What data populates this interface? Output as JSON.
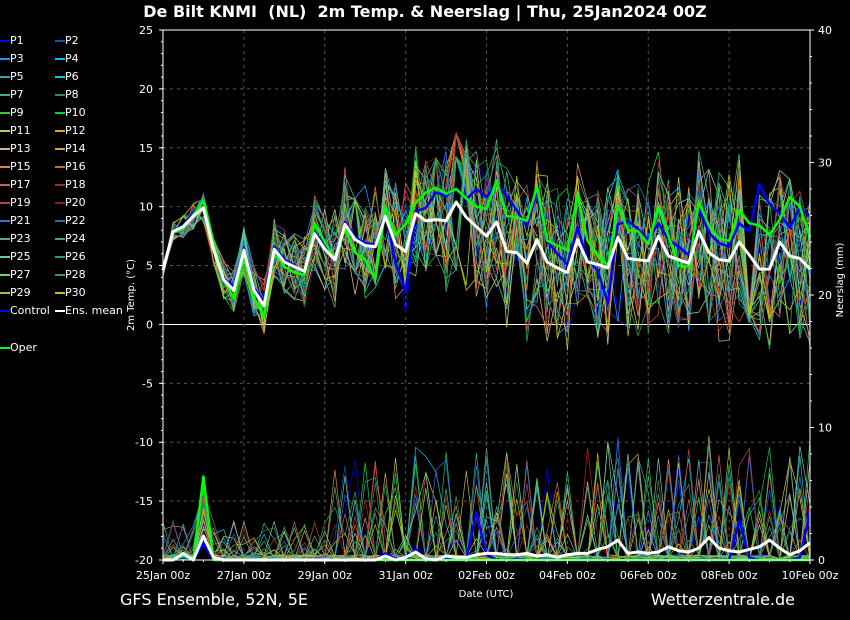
{
  "title": "De Bilt KNMI  (NL)  2m Temp. & Neerslag | Thu, 25Jan2024 00Z",
  "footer": {
    "model": "GFS Ensemble, 52N, 5E",
    "source": "Wetterzentrale.de"
  },
  "colors": {
    "background": "#000000",
    "mean": "#ffffff",
    "control": "#0000ff",
    "oper": "#00ff00",
    "grid": "#555555"
  },
  "chart_data": {
    "type": "line",
    "xlabel": "Date (UTC)",
    "ylabel": "2m Temp. (°C)",
    "y2label": "Neerslag (mm)",
    "xticks": [
      "25Jan 00z",
      "27Jan 00z",
      "29Jan 00z",
      "31Jan 00z",
      "02Feb 00z",
      "04Feb 00z",
      "06Feb 00z",
      "08Feb 00z",
      "10Feb 00z"
    ],
    "xlim_hours": [
      0,
      384
    ],
    "ylim": [
      -20,
      25
    ],
    "yticks": [
      25,
      20,
      15,
      10,
      5,
      0,
      -5,
      -10,
      -15,
      -20
    ],
    "y2lim": [
      0,
      40
    ],
    "y2ticks": [
      40,
      30,
      20,
      10,
      0
    ],
    "grid": true,
    "legend": [
      "P1",
      "P2",
      "P3",
      "P4",
      "P5",
      "P6",
      "P7",
      "P8",
      "P9",
      "P10",
      "P11",
      "P12",
      "P13",
      "P14",
      "P15",
      "P16",
      "P17",
      "P18",
      "P19",
      "P20",
      "P21",
      "P22",
      "P23",
      "P24",
      "P25",
      "P26",
      "P27",
      "P28",
      "P29",
      "P30",
      "Control",
      "Ens. mean",
      "Oper"
    ],
    "legend_colors": [
      "#0000ff",
      "#0055cc",
      "#1e90ff",
      "#00bfff",
      "#20b2aa",
      "#00ced1",
      "#3cb371",
      "#2e8b57",
      "#32cd32",
      "#00cc44",
      "#c8c850",
      "#c8b400",
      "#d2b48c",
      "#d2a050",
      "#e08050",
      "#d2691e",
      "#cd5c5c",
      "#b22222",
      "#c04040",
      "#8b1a1a",
      "#4169e1",
      "#1e70c0",
      "#5f9ea0",
      "#40a0a0",
      "#66cdaa",
      "#20a070",
      "#7ccd7c",
      "#30a050",
      "#9acd32",
      "#c8c000",
      "#0000ff",
      "#ffffff",
      "#00ff00"
    ],
    "series": [
      {
        "name": "Ens. mean",
        "x": [
          0,
          6,
          12,
          18,
          24,
          30,
          36,
          42,
          48,
          54,
          60,
          66,
          72,
          78,
          84,
          90,
          96,
          102,
          108,
          114,
          120,
          126,
          132,
          138,
          144,
          150,
          156,
          162,
          168,
          174,
          180,
          186,
          192,
          198,
          204,
          210,
          216,
          222,
          228,
          234,
          240,
          246,
          252,
          258,
          264,
          270,
          276,
          282,
          288,
          294,
          300,
          306,
          312,
          318,
          324,
          330,
          336,
          342,
          348,
          354,
          360,
          366,
          372,
          378,
          384
        ],
        "values": [
          4.6,
          7.9,
          8.3,
          9.2,
          9.9,
          6.4,
          3.8,
          2.9,
          6.3,
          2.9,
          1.6,
          6.4,
          5.3,
          4.9,
          4.5,
          7.7,
          6.4,
          5.5,
          8.5,
          7.2,
          6.7,
          6.6,
          9.2,
          6.8,
          6.2,
          9.4,
          8.8,
          8.9,
          8.8,
          10.4,
          9.1,
          8.3,
          7.5,
          8.7,
          6.2,
          6.1,
          5.2,
          7.2,
          5.3,
          4.8,
          4.4,
          7.2,
          5.3,
          5.1,
          4.8,
          7.4,
          5.6,
          5.5,
          5.4,
          7.5,
          5.8,
          5.5,
          5.2,
          7.9,
          6.1,
          5.5,
          5.4,
          7.0,
          5.9,
          4.7,
          4.7,
          7.0,
          5.8,
          5.6,
          4.7
        ]
      },
      {
        "name": "Control",
        "x": [
          0,
          6,
          12,
          18,
          24,
          30,
          36,
          42,
          48,
          54,
          60,
          66,
          72,
          78,
          84,
          90,
          96,
          102,
          108,
          114,
          120,
          126,
          132,
          138,
          144,
          150,
          156,
          162,
          168,
          174,
          180,
          186,
          192,
          198,
          204,
          210,
          216,
          222,
          228,
          234,
          240,
          246,
          252,
          258,
          264,
          270,
          276,
          282,
          288,
          294,
          300,
          306,
          312,
          318,
          324,
          330,
          336,
          342,
          348,
          354,
          360,
          366,
          372,
          378,
          384
        ],
        "values": [
          4.6,
          8.0,
          8.4,
          9.5,
          10.4,
          6.5,
          3.9,
          3.2,
          6.5,
          3.1,
          1.9,
          6.6,
          5.5,
          5.0,
          4.4,
          7.9,
          6.6,
          5.6,
          8.7,
          7.4,
          6.9,
          6.8,
          9.5,
          5.2,
          2.8,
          9.6,
          9.9,
          11.2,
          10.9,
          11.6,
          10.6,
          11.5,
          10.8,
          12.0,
          10.9,
          9.7,
          8.3,
          11.2,
          7.1,
          6.0,
          5.1,
          8.2,
          5.5,
          4.6,
          1.8,
          8.5,
          8.8,
          8.1,
          7.2,
          8.6,
          7.2,
          6.6,
          5.9,
          9.9,
          7.8,
          6.9,
          6.6,
          8.6,
          7.9,
          11.9,
          10.2,
          9.4,
          8.2,
          9.9,
          9.2
        ]
      },
      {
        "name": "Oper",
        "x": [
          0,
          6,
          12,
          18,
          24,
          30,
          36,
          42,
          48,
          54,
          60,
          66,
          72,
          78,
          84,
          90,
          96,
          102,
          108,
          114,
          120,
          126,
          132,
          138,
          144,
          150,
          156,
          162,
          168,
          174,
          180,
          186,
          192,
          198,
          204,
          210,
          216,
          222,
          228,
          234,
          240,
          246,
          252,
          258,
          264,
          270,
          276,
          282,
          288,
          294,
          300,
          306,
          312,
          318,
          324,
          330,
          336,
          342,
          348,
          354,
          360,
          366,
          372,
          378,
          384
        ],
        "values": [
          4.6,
          7.8,
          8.1,
          9.3,
          10.5,
          7.0,
          3.8,
          2.2,
          5.9,
          2.3,
          0.6,
          6.2,
          4.9,
          4.4,
          4.2,
          8.6,
          7.0,
          5.6,
          8.1,
          6.1,
          5.5,
          3.8,
          9.9,
          7.6,
          8.5,
          10.3,
          11.2,
          11.6,
          11.1,
          11.5,
          10.7,
          10.0,
          9.8,
          12.2,
          9.2,
          9.1,
          8.8,
          11.7,
          7.1,
          6.7,
          6.3,
          11.0,
          7.1,
          5.9,
          5.0,
          10.1,
          8.0,
          7.9,
          6.8,
          10.0,
          7.5,
          5.0,
          4.9,
          10.4,
          8.4,
          7.3,
          7.1,
          9.7,
          8.6,
          8.4,
          7.6,
          8.9,
          10.8,
          10.0,
          7.4
        ]
      },
      {
        "name": "Neerslag mean",
        "axis": "y2",
        "x": [
          0,
          6,
          12,
          18,
          24,
          30,
          36,
          42,
          48,
          54,
          60,
          66,
          72,
          78,
          84,
          90,
          96,
          102,
          108,
          114,
          120,
          126,
          132,
          138,
          144,
          150,
          156,
          162,
          168,
          174,
          180,
          186,
          192,
          198,
          204,
          210,
          216,
          222,
          228,
          234,
          240,
          246,
          252,
          258,
          264,
          270,
          276,
          282,
          288,
          294,
          300,
          306,
          312,
          318,
          324,
          330,
          336,
          342,
          348,
          354,
          360,
          366,
          372,
          378,
          384
        ],
        "values": [
          0,
          0,
          0.5,
          0,
          1.8,
          0.2,
          0,
          0,
          0,
          0,
          0,
          0,
          0,
          0,
          0,
          0,
          0,
          0,
          0,
          0,
          0,
          0,
          0.3,
          0,
          0.2,
          0.6,
          0.1,
          0,
          0.3,
          0.2,
          0.2,
          0.4,
          0.5,
          0.5,
          0.4,
          0.4,
          0.5,
          0.3,
          0.4,
          0.2,
          0.4,
          0.5,
          0.5,
          0.8,
          1.0,
          1.5,
          0.5,
          0.6,
          0.5,
          0.6,
          1.0,
          0.7,
          0.6,
          0.9,
          1.7,
          0.9,
          0.7,
          0.6,
          0.8,
          1.0,
          1.5,
          0.9,
          0.4,
          0.7,
          1.3
        ]
      },
      {
        "name": "Neerslag Control",
        "axis": "y2",
        "x": [
          0,
          6,
          12,
          18,
          24,
          30,
          36,
          42,
          48,
          54,
          60,
          66,
          72,
          78,
          84,
          90,
          96,
          102,
          108,
          114,
          120,
          126,
          132,
          138,
          144,
          150,
          156,
          162,
          168,
          174,
          180,
          186,
          192,
          198,
          204,
          210,
          216,
          222,
          228,
          234,
          240,
          246,
          252,
          258,
          264,
          270,
          276,
          282,
          288,
          294,
          300,
          306,
          312,
          318,
          324,
          330,
          336,
          342,
          348,
          354,
          360,
          366,
          372,
          378,
          384
        ],
        "values": [
          0,
          0,
          0.2,
          0,
          1.2,
          0,
          0,
          0,
          0,
          0,
          0,
          0,
          0,
          0,
          0,
          0,
          0,
          0,
          0,
          0,
          0,
          0,
          0.5,
          0.1,
          0,
          0.8,
          0,
          0,
          0.1,
          0,
          0.1,
          3.6,
          0.4,
          0,
          0,
          0.1,
          0,
          0,
          0,
          0,
          0,
          0,
          0,
          0,
          0,
          0,
          0,
          0,
          0,
          0,
          0,
          0,
          0,
          0,
          0,
          0,
          0,
          3.0,
          0.2,
          0,
          0,
          0,
          0,
          0.2,
          3.6
        ]
      },
      {
        "name": "Neerslag Oper",
        "axis": "y2",
        "x": [
          0,
          6,
          12,
          18,
          24,
          30,
          36,
          42,
          48,
          54,
          60,
          66,
          72,
          78,
          84,
          90,
          96,
          102,
          108,
          114,
          120,
          126,
          132,
          138,
          144,
          150,
          156,
          162,
          168,
          174,
          180,
          186,
          192,
          198,
          204,
          210,
          216,
          222,
          228,
          234,
          240,
          246,
          252,
          258,
          264,
          270,
          276,
          282,
          288,
          294,
          300,
          306,
          312,
          318,
          324,
          330,
          336,
          342,
          348,
          354,
          360,
          366,
          372,
          378,
          384
        ],
        "values": [
          0,
          0,
          0.3,
          0,
          6.3,
          0,
          0,
          0,
          0,
          0,
          0,
          0,
          0,
          0,
          0,
          0,
          0,
          0,
          0,
          0,
          0,
          0,
          0,
          0,
          0,
          0,
          0,
          0,
          0,
          0,
          0,
          0,
          0,
          0,
          0,
          0,
          0,
          0,
          0,
          0,
          0,
          0,
          0,
          0,
          0,
          0,
          0,
          0,
          0,
          0,
          0,
          0,
          0,
          0,
          0,
          0,
          0,
          0,
          0,
          0,
          0,
          0,
          0,
          0,
          0
        ]
      }
    ]
  }
}
